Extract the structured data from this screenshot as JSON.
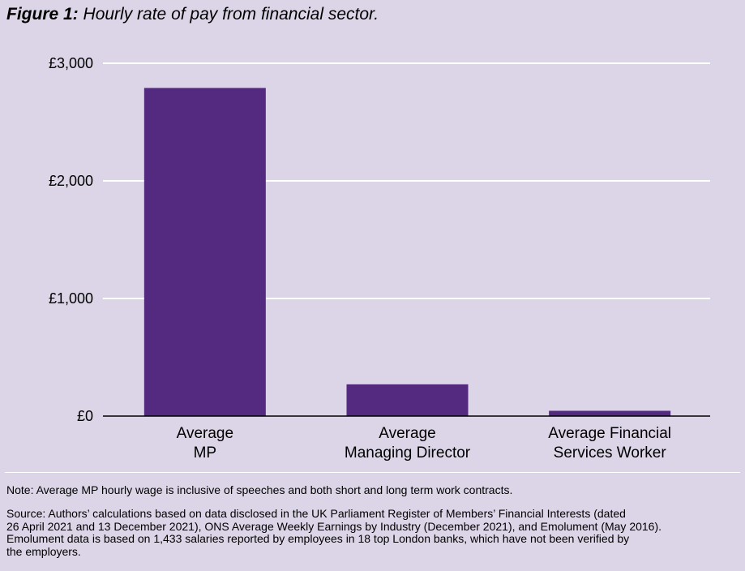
{
  "title": {
    "label": "Figure 1:",
    "text": "Hourly rate of pay from financial sector."
  },
  "chart_data": {
    "type": "bar",
    "categories": [
      [
        "Average",
        "MP"
      ],
      [
        "Average",
        "Managing Director"
      ],
      [
        "Average Financial",
        "Services Worker"
      ]
    ],
    "values": [
      2790,
      270,
      45
    ],
    "ylim": [
      0,
      3000
    ],
    "yticks": [
      0,
      1000,
      2000,
      3000
    ],
    "ytick_labels": [
      "£0",
      "£1,000",
      "£2,000",
      "£3,000"
    ],
    "grid": true,
    "bar_color": "#532a80",
    "gridline_color": "#ffffff"
  },
  "note": "Note: Average MP hourly wage is inclusive of speeches and both short and long term work contracts.",
  "source_lines": [
    "Source: Authors’ calculations based on data disclosed in the UK Parliament Register of Members’ Financial Interests (dated",
    "26 April 2021 and 13 December 2021), ONS Average Weekly Earnings by Industry (December 2021), and Emolument (May 2016).",
    "Emolument data is based on 1,433 salaries reported by employees in 18 top London banks, which have not been verified by",
    "the employers."
  ]
}
